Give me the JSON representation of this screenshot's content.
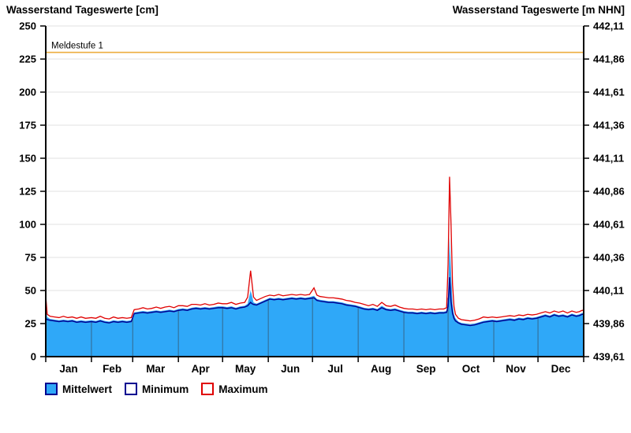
{
  "titles": {
    "left": "Wasserstand Tageswerte [cm]",
    "right": "Wasserstand Tageswerte [m NHN]"
  },
  "legend": {
    "items": [
      {
        "label": "Mittelwert",
        "swatch": "filled-blue"
      },
      {
        "label": "Minimum",
        "swatch": "outline-navy"
      },
      {
        "label": "Maximum",
        "swatch": "outline-red"
      }
    ]
  },
  "colors": {
    "mean_fill": "#2FA8F8",
    "min_line": "#000090",
    "max_line": "#E00000",
    "grid": "#E0E0E0",
    "axis": "#000000",
    "threshold": "#EDAE3E",
    "month_separator": "#35688C"
  },
  "chart_data": {
    "type": "area",
    "title": "Wasserstand Tageswerte",
    "x_unit": "day_of_year",
    "months": [
      "Jan",
      "Feb",
      "Mar",
      "Apr",
      "May",
      "Jun",
      "Jul",
      "Aug",
      "Sep",
      "Oct",
      "Nov",
      "Dec"
    ],
    "month_start_days": [
      0,
      31,
      59,
      90,
      120,
      151,
      181,
      212,
      243,
      273,
      304,
      334,
      365
    ],
    "ylabel_left": "Wasserstand Tageswerte [cm]",
    "ylabel_right": "Wasserstand Tageswerte [m NHN]",
    "ylim_left_cm": [
      0,
      250
    ],
    "left_ticks_cm": [
      0,
      25,
      50,
      75,
      100,
      125,
      150,
      175,
      200,
      225,
      250
    ],
    "right_tick_labels_m_nhn": [
      "439,61",
      "439,86",
      "440,11",
      "440,36",
      "440,61",
      "440,86",
      "441,11",
      "441,36",
      "441,61",
      "441,86",
      "442,11"
    ],
    "grid": "horizontal-on",
    "legend_position": "bottom-left",
    "threshold": {
      "label": "Meldestufe 1",
      "value_cm": 230
    },
    "x_days": [
      0,
      1,
      3,
      6,
      9,
      12,
      15,
      18,
      21,
      24,
      27,
      31,
      34,
      37,
      40,
      43,
      46,
      49,
      52,
      55,
      58,
      60,
      63,
      66,
      69,
      72,
      75,
      78,
      81,
      84,
      87,
      90,
      93,
      96,
      99,
      102,
      105,
      108,
      111,
      114,
      117,
      120,
      123,
      126,
      129,
      132,
      135,
      137,
      139,
      140,
      141,
      143,
      146,
      149,
      152,
      155,
      158,
      161,
      164,
      167,
      170,
      173,
      176,
      179,
      182,
      184,
      186,
      189,
      192,
      195,
      198,
      201,
      204,
      207,
      210,
      213,
      216,
      219,
      222,
      225,
      228,
      231,
      234,
      237,
      240,
      243,
      246,
      249,
      252,
      255,
      258,
      261,
      264,
      267,
      270,
      272,
      273,
      274,
      275,
      276,
      277,
      278,
      280,
      282,
      285,
      288,
      291,
      294,
      297,
      300,
      303,
      306,
      309,
      312,
      315,
      318,
      321,
      324,
      327,
      330,
      333,
      336,
      339,
      342,
      345,
      348,
      351,
      354,
      357,
      360,
      362,
      364
    ],
    "series": [
      {
        "name": "Mittelwert",
        "style": "area",
        "color": "#2FA8F8",
        "values": [
          42,
          30,
          28.5,
          28,
          27.5,
          28,
          27.5,
          28,
          27,
          27.5,
          27,
          27.5,
          27,
          28,
          27,
          26.5,
          27.5,
          27,
          27.5,
          27,
          27.5,
          33.5,
          34,
          34.5,
          34,
          34.5,
          35,
          34.5,
          35,
          35.5,
          35,
          36,
          36.5,
          36,
          37,
          37.5,
          37,
          37.5,
          37,
          37.5,
          38,
          38,
          37.5,
          38,
          37,
          38,
          38.5,
          40,
          50,
          46,
          41,
          40,
          41.5,
          43,
          44.5,
          44,
          44.5,
          44,
          44.5,
          45,
          44.5,
          45,
          44.5,
          45,
          46,
          43.5,
          43,
          42.5,
          42,
          42,
          41.5,
          41,
          40,
          39.5,
          39,
          38,
          37,
          36.5,
          37,
          36,
          38.5,
          36.5,
          36,
          36.5,
          35.5,
          34.5,
          34,
          34,
          33.5,
          34,
          33.5,
          34,
          33.5,
          34,
          34,
          34.5,
          45,
          90,
          65,
          40,
          32,
          29,
          26.5,
          25.5,
          25,
          24.5,
          25,
          26,
          27,
          27.5,
          28,
          27.5,
          28,
          28.5,
          29,
          28.5,
          29.5,
          29,
          30,
          29.5,
          30,
          31,
          32,
          31,
          32.5,
          31.5,
          32,
          31,
          32.5,
          31.5,
          32,
          33
        ]
      },
      {
        "name": "Minimum",
        "style": "line",
        "color": "#000090",
        "values": [
          29,
          28,
          27.5,
          27,
          26.5,
          27,
          26.5,
          27,
          26,
          26.5,
          26,
          26.5,
          26,
          27,
          26,
          25.5,
          26.5,
          26,
          26.5,
          26,
          26.5,
          32.5,
          33,
          33.5,
          33,
          33.5,
          34,
          33.5,
          34,
          34.5,
          34,
          35,
          35.5,
          35,
          36,
          36.5,
          36,
          36.5,
          36,
          36.5,
          37,
          37,
          36.5,
          37,
          36,
          37,
          37.5,
          38.5,
          41,
          40,
          39.5,
          39,
          40.5,
          42,
          43.5,
          43,
          43.5,
          43,
          43.5,
          44,
          43.5,
          44,
          43.5,
          44,
          44.5,
          42.5,
          42,
          41.5,
          41,
          41,
          40.5,
          40,
          39,
          38.5,
          38,
          37,
          36,
          35.5,
          36,
          35,
          37,
          35.5,
          35,
          35.5,
          34.5,
          33.5,
          33,
          33,
          32.5,
          33,
          32.5,
          33,
          32.5,
          33,
          33,
          33.5,
          38,
          60,
          42,
          33,
          29,
          27,
          25.5,
          24.5,
          24,
          23.5,
          24,
          25,
          26,
          26.5,
          27,
          26.5,
          27,
          27.5,
          28,
          27.5,
          28.5,
          28,
          29,
          28.5,
          29,
          30,
          31,
          30,
          31.5,
          30.5,
          31,
          30,
          31.5,
          30.5,
          31,
          32
        ]
      },
      {
        "name": "Maximum",
        "style": "line",
        "color": "#E00000",
        "values": [
          46,
          32,
          30.5,
          30,
          29.5,
          30.5,
          29.5,
          30,
          29,
          30,
          29,
          29.5,
          29,
          30.5,
          29,
          28.5,
          30,
          29,
          29.5,
          29,
          29.5,
          35.5,
          36,
          37,
          36,
          36.5,
          37.5,
          36.5,
          37.5,
          38,
          37,
          38.5,
          38.5,
          38,
          39.5,
          39.5,
          39,
          40,
          39,
          39.5,
          40.5,
          40,
          40,
          41,
          39.5,
          40.5,
          41,
          45,
          65,
          55,
          45,
          42.5,
          44,
          45.5,
          46.5,
          46,
          47,
          46,
          46.5,
          47,
          46.5,
          47,
          46.5,
          47,
          52,
          46.5,
          45.5,
          45,
          44.5,
          44.5,
          44,
          43.5,
          42.5,
          42,
          41,
          40.5,
          39.5,
          38.5,
          39.5,
          38,
          41,
          38.5,
          38,
          39,
          37.5,
          36.5,
          36,
          36,
          35.5,
          36,
          35.5,
          36,
          35.5,
          36,
          36,
          37,
          70,
          136,
          100,
          55,
          38,
          32,
          29,
          28,
          27.5,
          27,
          27.5,
          28.5,
          30,
          29.5,
          30,
          29.5,
          30,
          30.5,
          31,
          30.5,
          31.5,
          31,
          32,
          31.5,
          32,
          33,
          34,
          33,
          34.5,
          33.5,
          34.5,
          33,
          34.5,
          33.5,
          34,
          35
        ]
      }
    ]
  }
}
